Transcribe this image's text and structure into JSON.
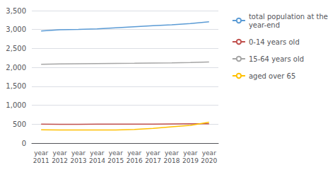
{
  "chart_data": {
    "type": "line",
    "categories": [
      "year\n2011",
      "year\n2012",
      "year\n2013",
      "year\n2014",
      "year\n2015",
      "year\n2016",
      "year\n2017",
      "year\n2018",
      "year\n2019",
      "year\n2020"
    ],
    "series": [
      {
        "name": "total population at the\nyear-end",
        "color": "#5b9bd5",
        "values": [
          2963,
          2995,
          3002,
          3017,
          3048,
          3075,
          3101,
          3124,
          3160,
          3205
        ]
      },
      {
        "name": "0-14 years old",
        "color": "#c0504d",
        "values": [
          500,
          498,
          498,
          499,
          500,
          500,
          502,
          505,
          508,
          510
        ]
      },
      {
        "name": "15-64 years old",
        "color": "#a5a5a5",
        "values": [
          2080,
          2090,
          2095,
          2100,
          2105,
          2108,
          2115,
          2120,
          2130,
          2145
        ]
      },
      {
        "name": "aged over 65",
        "color": "#ffc000",
        "values": [
          350,
          348,
          346,
          345,
          348,
          360,
          390,
          430,
          470,
          550
        ]
      }
    ],
    "ylim": [
      0,
      3500
    ],
    "yticks": [
      0,
      500,
      1000,
      1500,
      2000,
      2500,
      3000,
      3500
    ],
    "grid": true,
    "legend": "right"
  }
}
